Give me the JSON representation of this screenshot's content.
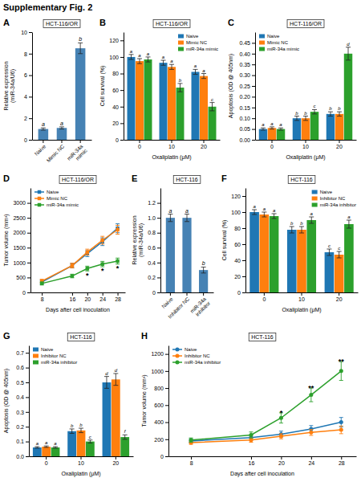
{
  "title": "Supplementary Fig. 2",
  "chart_data": [
    {
      "type": "bar",
      "panel_label": "A",
      "title": "HCT-116/OR",
      "categories": [
        "Naive",
        "Mimic NC",
        "miR-34a\nmimic"
      ],
      "values": [
        1.0,
        1.1,
        8.5
      ],
      "errors": [
        0.1,
        0.1,
        0.5
      ],
      "letter_labels": [
        "a",
        "a",
        "b"
      ],
      "ylabel": "Relative expression\n(miR-34a/U6)",
      "ylim": [
        0,
        10
      ],
      "yticks": [
        0,
        2,
        4,
        6,
        8,
        10
      ]
    },
    {
      "type": "bar",
      "panel_label": "B",
      "title": "HCT-116/OR",
      "categories": [
        "0",
        "10",
        "20"
      ],
      "xlabel": "Oxaliplatin (μM)",
      "ylabel": "Cell survival (%)",
      "ylim": [
        0,
        130
      ],
      "yticks": [
        0,
        20,
        40,
        60,
        80,
        100,
        120
      ],
      "legend": "upper right",
      "series": [
        {
          "name": "Naive",
          "values": [
            100,
            93,
            82
          ],
          "errors": [
            3,
            3,
            3
          ],
          "letter_labels": [
            "a",
            "a",
            "a"
          ]
        },
        {
          "name": "Mimic NC",
          "values": [
            95,
            88,
            77
          ],
          "errors": [
            3,
            3,
            3
          ],
          "letter_labels": [
            "a",
            "a",
            "a"
          ]
        },
        {
          "name": "miR-34a mimic",
          "values": [
            97,
            63,
            40
          ],
          "errors": [
            3,
            5,
            5
          ],
          "letter_labels": [
            "a",
            "b",
            "c"
          ]
        }
      ]
    },
    {
      "type": "bar",
      "panel_label": "C",
      "title": "HCT-116/OR",
      "categories": [
        "0",
        "10",
        "20"
      ],
      "xlabel": "Oxaliplatin (μM)",
      "ylabel": "Apoptosis (OD @ 405nm)",
      "ylim": [
        0,
        0.5
      ],
      "yticks": [
        {
          "value": 0,
          "label": "0.00"
        },
        0.05,
        {
          "value": 0.1,
          "label": "0.10"
        },
        0.15,
        {
          "value": 0.2,
          "label": "0.20"
        },
        0.25,
        {
          "value": 0.3,
          "label": "0.30"
        },
        0.35,
        {
          "value": 0.4,
          "label": "0.40"
        },
        0.45
      ],
      "legend": "upper left",
      "series": [
        {
          "name": "Naive",
          "values": [
            0.05,
            0.1,
            0.12
          ],
          "errors": [
            0.005,
            0.01,
            0.01
          ],
          "letter_labels": [
            "a",
            "b",
            "b"
          ]
        },
        {
          "name": "Mimic NC",
          "values": [
            0.055,
            0.1,
            0.12
          ],
          "errors": [
            0.005,
            0.01,
            0.01
          ],
          "letter_labels": [
            "a",
            "b",
            "b"
          ]
        },
        {
          "name": "miR-34a mimic",
          "values": [
            0.05,
            0.13,
            0.4
          ],
          "errors": [
            0.005,
            0.01,
            0.03
          ],
          "letter_labels": [
            "a",
            "c",
            "d"
          ]
        }
      ]
    },
    {
      "type": "line",
      "panel_label": "D",
      "title": "HCT-116/OR",
      "marker": "square",
      "x": [
        8,
        16,
        20,
        24,
        28
      ],
      "xlim": [
        5,
        30
      ],
      "xticks": [
        8,
        16,
        20,
        24,
        28
      ],
      "xlabel": "Days after cell inoculation",
      "ylabel": "Tumor volume (mm³)",
      "ylim": [
        0,
        3500
      ],
      "yticks": [
        0,
        500,
        1000,
        1500,
        2000,
        2500,
        3000
      ],
      "legend": "upper left",
      "series": [
        {
          "name": "Naive",
          "values": [
            350,
            900,
            1300,
            1700,
            2150
          ],
          "errors": [
            60,
            80,
            100,
            130,
            150
          ]
        },
        {
          "name": "Mimic NC",
          "values": [
            380,
            900,
            1350,
            1750,
            2100
          ],
          "errors": [
            60,
            80,
            100,
            130,
            150
          ]
        },
        {
          "name": "miR-34a mimic",
          "values": [
            300,
            550,
            800,
            950,
            1050
          ],
          "errors": [
            50,
            60,
            80,
            90,
            100
          ],
          "star_labels": [
            null,
            null,
            "*",
            "*",
            "*"
          ]
        }
      ]
    },
    {
      "type": "bar",
      "panel_label": "E",
      "title": "HCT-116",
      "categories": [
        "Naive",
        "Inhibitor NC",
        "miR-34a\ninhibitor"
      ],
      "values": [
        1.0,
        1.0,
        0.3
      ],
      "errors": [
        0.05,
        0.05,
        0.04
      ],
      "letter_labels": [
        "a",
        "a",
        "b"
      ],
      "ylabel": "Relative expression\n(miR-34a/U6)",
      "ylim": [
        0,
        1.4
      ],
      "yticks": [
        0,
        0.2,
        0.4,
        0.6,
        0.8,
        {
          "value": 1,
          "label": "1.0"
        },
        1.2
      ]
    },
    {
      "type": "bar",
      "panel_label": "F",
      "title": "HCT-116",
      "categories": [
        "0",
        "10",
        "20"
      ],
      "xlabel": "Oxaliplatin (μM)",
      "ylabel": "Cell survival (%)",
      "ylim": [
        0,
        130
      ],
      "yticks": [
        0,
        20,
        40,
        60,
        80,
        100,
        120
      ],
      "legend": "upper right",
      "series": [
        {
          "name": "Naive",
          "values": [
            100,
            78,
            50
          ],
          "errors": [
            3,
            4,
            4
          ],
          "letter_labels": [
            "a",
            "b",
            "c"
          ]
        },
        {
          "name": "Inhibitor NC",
          "values": [
            97,
            78,
            47
          ],
          "errors": [
            3,
            4,
            4
          ],
          "letter_labels": [
            "a",
            "b",
            "c"
          ]
        },
        {
          "name": "miR-34a inhibitor",
          "values": [
            95,
            90,
            85
          ],
          "errors": [
            3,
            4,
            5
          ],
          "letter_labels": [
            "a",
            "a",
            "a"
          ]
        }
      ]
    },
    {
      "type": "bar",
      "panel_label": "G",
      "title": "HCT-116",
      "categories": [
        "0",
        "10",
        "20"
      ],
      "xlabel": "Oxaliplatin (μM)",
      "ylabel": "Apoptosis (OD @ 405nm)",
      "ylim": [
        0,
        0.75
      ],
      "yticks": [
        {
          "value": 0,
          "label": "0.0"
        },
        0.1,
        0.2,
        0.3,
        0.4,
        0.5,
        0.6,
        0.7
      ],
      "legend": "upper left",
      "series": [
        {
          "name": "Naive",
          "values": [
            0.06,
            0.17,
            0.5
          ],
          "errors": [
            0.005,
            0.015,
            0.04
          ],
          "letter_labels": [
            "a",
            "b",
            "d"
          ]
        },
        {
          "name": "Inhibitor NC",
          "values": [
            0.065,
            0.175,
            0.52
          ],
          "errors": [
            0.005,
            0.015,
            0.04
          ],
          "letter_labels": [
            "a",
            "b",
            "d"
          ]
        },
        {
          "name": "miR-34a inhibitor",
          "values": [
            0.06,
            0.1,
            0.13
          ],
          "errors": [
            0.005,
            0.01,
            0.015
          ],
          "letter_labels": [
            "a",
            "c",
            "f"
          ]
        }
      ]
    },
    {
      "type": "line",
      "panel_label": "H",
      "title": "HCT-116",
      "marker": "circle",
      "x": [
        8,
        16,
        20,
        24,
        28
      ],
      "xlim": [
        5,
        30
      ],
      "xticks": [
        8,
        16,
        20,
        24,
        28
      ],
      "xlabel": "Days after cell inoculation",
      "ylabel": "Tumor volume (mm³)",
      "ylim": [
        0,
        1300
      ],
      "yticks": [
        0,
        200,
        400,
        600,
        800,
        1000,
        1200
      ],
      "legend": "upper left",
      "series": [
        {
          "name": "Naive",
          "values": [
            180,
            220,
            260,
            320,
            400
          ],
          "errors": [
            25,
            30,
            35,
            40,
            55
          ]
        },
        {
          "name": "Inhibitor NC",
          "values": [
            160,
            190,
            235,
            280,
            310
          ],
          "errors": [
            20,
            25,
            30,
            35,
            45
          ]
        },
        {
          "name": "miR-34a inhibitor",
          "values": [
            190,
            250,
            450,
            720,
            1000
          ],
          "errors": [
            25,
            35,
            60,
            80,
            110
          ],
          "star_labels": [
            null,
            null,
            "*",
            "**",
            "**"
          ]
        }
      ]
    }
  ]
}
